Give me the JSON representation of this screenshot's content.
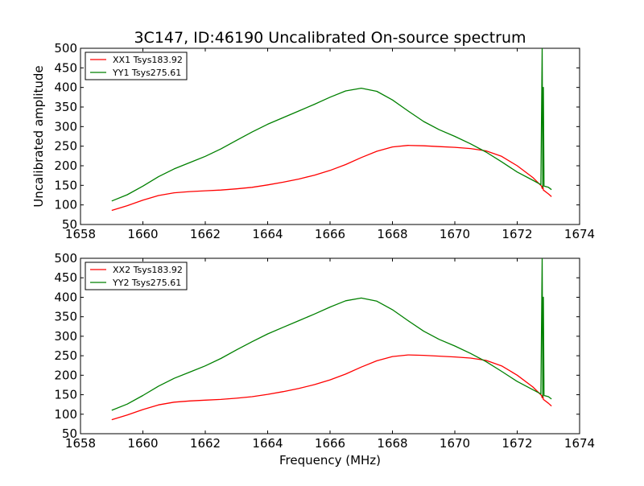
{
  "figure": {
    "title": "3C147, ID:46190 Uncalibrated On-source spectrum",
    "xlabel": "Frequency (MHz)"
  },
  "chart_data": [
    {
      "type": "line",
      "ylabel": "Uncalibrated amplitude",
      "xlim": [
        1658,
        1674
      ],
      "ylim": [
        50,
        500
      ],
      "xticks": [
        1658,
        1660,
        1662,
        1664,
        1666,
        1668,
        1670,
        1672,
        1674
      ],
      "yticks": [
        50,
        100,
        150,
        200,
        250,
        300,
        350,
        400,
        450,
        500
      ],
      "legend_position": "top-left",
      "grid": false,
      "series": [
        {
          "name": "XX1 Tsys183.92",
          "color": "#ff0000",
          "x": [
            1659.0,
            1659.5,
            1660.0,
            1660.5,
            1661.0,
            1661.5,
            1662.0,
            1662.5,
            1663.0,
            1663.5,
            1664.0,
            1664.5,
            1665.0,
            1665.5,
            1666.0,
            1666.5,
            1667.0,
            1667.5,
            1668.0,
            1668.5,
            1669.0,
            1669.5,
            1670.0,
            1670.5,
            1671.0,
            1671.5,
            1672.0,
            1672.5,
            1672.78,
            1672.8,
            1672.82,
            1672.84,
            1673.0,
            1673.1
          ],
          "y": [
            86,
            98,
            112,
            124,
            131,
            134,
            136,
            138,
            141,
            145,
            151,
            158,
            166,
            176,
            188,
            203,
            221,
            237,
            248,
            252,
            251,
            249,
            247,
            244,
            238,
            224,
            200,
            170,
            148,
            142,
            150,
            138,
            128,
            121
          ]
        },
        {
          "name": "YY1 Tsys275.61",
          "color": "#008000",
          "x": [
            1659.0,
            1659.5,
            1660.0,
            1660.5,
            1661.0,
            1661.5,
            1662.0,
            1662.5,
            1663.0,
            1663.5,
            1664.0,
            1664.5,
            1665.0,
            1665.5,
            1666.0,
            1666.5,
            1667.0,
            1667.5,
            1668.0,
            1668.5,
            1669.0,
            1669.5,
            1670.0,
            1670.5,
            1671.0,
            1671.5,
            1672.0,
            1672.5,
            1672.76,
            1672.8,
            1672.82,
            1672.84,
            1672.86,
            1673.0,
            1673.1
          ],
          "y": [
            110,
            126,
            148,
            172,
            192,
            208,
            224,
            243,
            265,
            286,
            306,
            323,
            340,
            357,
            375,
            391,
            398,
            390,
            368,
            340,
            313,
            292,
            275,
            256,
            235,
            210,
            184,
            163,
            152,
            500,
            145,
            400,
            148,
            145,
            139
          ]
        }
      ]
    },
    {
      "type": "line",
      "ylabel": "",
      "xlim": [
        1658,
        1674
      ],
      "ylim": [
        50,
        500
      ],
      "xticks": [
        1658,
        1660,
        1662,
        1664,
        1666,
        1668,
        1670,
        1672,
        1674
      ],
      "yticks": [
        50,
        100,
        150,
        200,
        250,
        300,
        350,
        400,
        450,
        500
      ],
      "legend_position": "top-left",
      "grid": false,
      "series": [
        {
          "name": "XX2 Tsys183.92",
          "color": "#ff0000",
          "x": [
            1659.0,
            1659.5,
            1660.0,
            1660.5,
            1661.0,
            1661.5,
            1662.0,
            1662.5,
            1663.0,
            1663.5,
            1664.0,
            1664.5,
            1665.0,
            1665.5,
            1666.0,
            1666.5,
            1667.0,
            1667.5,
            1668.0,
            1668.5,
            1669.0,
            1669.5,
            1670.0,
            1670.5,
            1671.0,
            1671.5,
            1672.0,
            1672.5,
            1672.78,
            1672.8,
            1672.82,
            1672.84,
            1673.0,
            1673.1
          ],
          "y": [
            86,
            98,
            112,
            124,
            131,
            134,
            136,
            138,
            141,
            145,
            151,
            158,
            166,
            176,
            188,
            203,
            221,
            237,
            248,
            252,
            251,
            249,
            247,
            244,
            238,
            224,
            200,
            170,
            148,
            142,
            150,
            138,
            128,
            121
          ]
        },
        {
          "name": "YY2 Tsys275.61",
          "color": "#008000",
          "x": [
            1659.0,
            1659.5,
            1660.0,
            1660.5,
            1661.0,
            1661.5,
            1662.0,
            1662.5,
            1663.0,
            1663.5,
            1664.0,
            1664.5,
            1665.0,
            1665.5,
            1666.0,
            1666.5,
            1667.0,
            1667.5,
            1668.0,
            1668.5,
            1669.0,
            1669.5,
            1670.0,
            1670.5,
            1671.0,
            1671.5,
            1672.0,
            1672.5,
            1672.76,
            1672.8,
            1672.82,
            1672.84,
            1672.86,
            1673.0,
            1673.1
          ],
          "y": [
            110,
            126,
            148,
            172,
            192,
            208,
            224,
            243,
            265,
            286,
            306,
            323,
            340,
            357,
            375,
            391,
            398,
            390,
            368,
            340,
            313,
            292,
            275,
            256,
            235,
            210,
            184,
            163,
            152,
            500,
            145,
            400,
            148,
            145,
            139
          ]
        }
      ]
    }
  ]
}
